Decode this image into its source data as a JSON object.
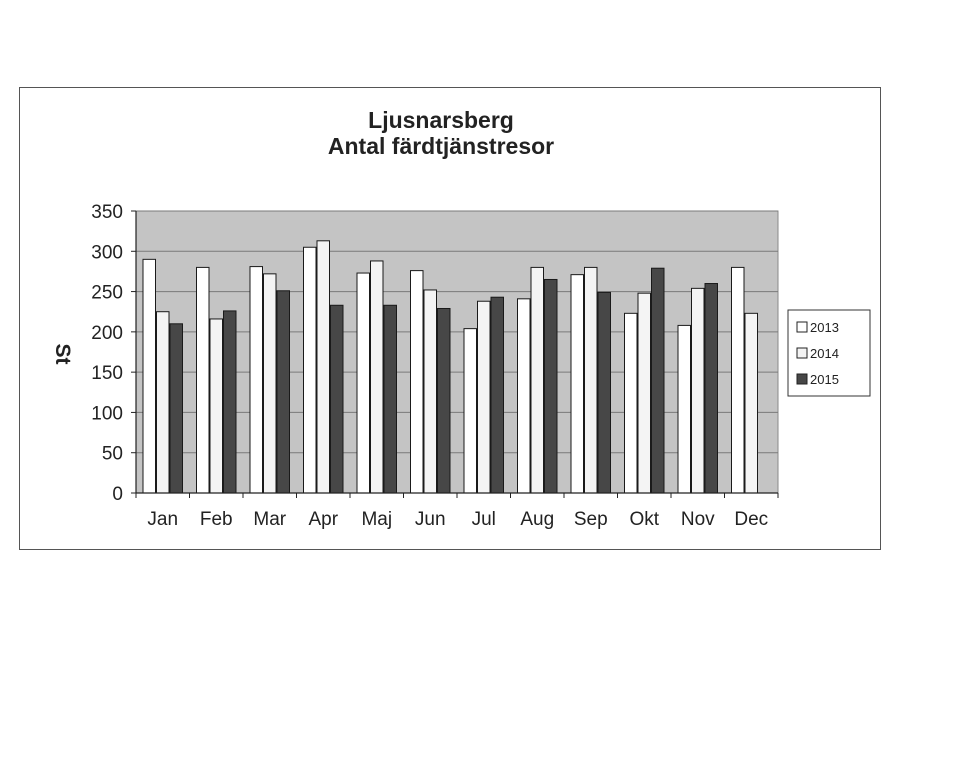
{
  "chart_data": {
    "type": "bar",
    "title": [
      "Ljusnarsberg",
      "Antal färdtjänstresor"
    ],
    "xlabel": "",
    "ylabel": "St",
    "ylim": [
      0,
      350
    ],
    "yticks": [
      0,
      50,
      100,
      150,
      200,
      250,
      300,
      350
    ],
    "grid": true,
    "legend_position": "right",
    "categories": [
      "Jan",
      "Feb",
      "Mar",
      "Apr",
      "Maj",
      "Jun",
      "Jul",
      "Aug",
      "Sep",
      "Okt",
      "Nov",
      "Dec"
    ],
    "series": [
      {
        "name": "2013",
        "color": "#ffffff",
        "values": [
          290,
          280,
          281,
          305,
          273,
          276,
          204,
          241,
          271,
          223,
          208,
          280
        ]
      },
      {
        "name": "2014",
        "color": "#f4f4f4",
        "values": [
          225,
          216,
          272,
          313,
          288,
          252,
          238,
          280,
          280,
          248,
          254,
          223
        ]
      },
      {
        "name": "2015",
        "color": "#474747",
        "values": [
          210,
          226,
          251,
          233,
          233,
          229,
          243,
          265,
          249,
          279,
          260,
          null
        ]
      }
    ],
    "plot_background": "#c4c4c4"
  }
}
